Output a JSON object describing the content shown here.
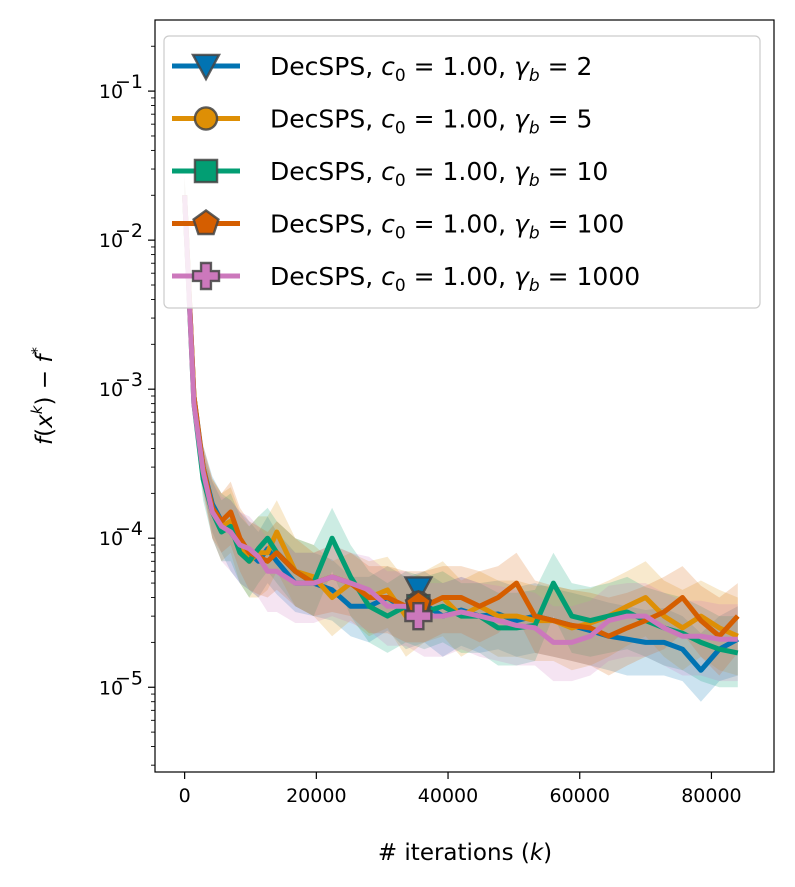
{
  "chart_data": {
    "type": "line",
    "title": "",
    "xlabel": "# iterations (k)",
    "ylabel": "f(x^k) − f*",
    "x_scale": "linear",
    "y_scale": "log",
    "xlim": [
      -4500,
      89500
    ],
    "ylim": [
      2.7e-06,
      0.3
    ],
    "grid": false,
    "legend_position": "upper-right",
    "x_ticks": [
      0,
      20000,
      40000,
      60000,
      80000
    ],
    "x_tick_labels": [
      "0",
      "20000",
      "40000",
      "60000",
      "80000"
    ],
    "y_ticks": [
      1e-05,
      0.0001,
      0.001,
      0.01,
      0.1
    ],
    "y_tick_labels": [
      {
        "base": "10",
        "exp": "−5"
      },
      {
        "base": "10",
        "exp": "−4"
      },
      {
        "base": "10",
        "exp": "−3"
      },
      {
        "base": "10",
        "exp": "−2"
      },
      {
        "base": "10",
        "exp": "−1"
      }
    ],
    "x": [
      0,
      1400,
      2800,
      4200,
      5600,
      7000,
      8400,
      9800,
      11200,
      12600,
      14000,
      16800,
      19600,
      22400,
      25200,
      28000,
      30800,
      33600,
      36400,
      39200,
      42000,
      44800,
      47600,
      50400,
      53200,
      56000,
      58800,
      61600,
      64400,
      67200,
      70000,
      72800,
      75600,
      78400,
      81200,
      84000
    ],
    "series": [
      {
        "name": "DecSPS, c0 = 1.00, γb = 2",
        "legend": {
          "main": "DecSPS, ",
          "c_sym": "c",
          "c_sub": "0",
          "c_val": " = 1.00, ",
          "g_sym": "γ",
          "g_sub": "b",
          "g_val": " = 2"
        },
        "color": "#0173b2",
        "marker": "triangle-down",
        "marker_x": 35500,
        "marker_y": 4.6e-05,
        "values": [
          0.02,
          0.0009,
          0.0003,
          0.00017,
          0.00013,
          0.00011,
          9e-05,
          8e-05,
          7e-05,
          8.5e-05,
          7e-05,
          5e-05,
          5e-05,
          4.5e-05,
          3.5e-05,
          3.5e-05,
          4e-05,
          3.3e-05,
          3.6e-05,
          3e-05,
          3.3e-05,
          3e-05,
          3.1e-05,
          2.8e-05,
          3e-05,
          2.8e-05,
          2.6e-05,
          2.4e-05,
          2.2e-05,
          2.1e-05,
          2e-05,
          2e-05,
          1.8e-05,
          1.3e-05,
          1.8e-05,
          2.1e-05
        ],
        "band_lo": [
          0.015,
          0.0007,
          0.00022,
          0.00011,
          8e-05,
          6e-05,
          5e-05,
          4.5e-05,
          4e-05,
          5e-05,
          4.2e-05,
          3.2e-05,
          3e-05,
          2.8e-05,
          2.2e-05,
          2e-05,
          2.4e-05,
          1.8e-05,
          2e-05,
          1.6e-05,
          1.9e-05,
          1.7e-05,
          1.8e-05,
          1.6e-05,
          1.7e-05,
          1.6e-05,
          1.5e-05,
          1.4e-05,
          1.3e-05,
          1.2e-05,
          1.2e-05,
          1.2e-05,
          1.1e-05,
          8e-06,
          1.1e-05,
          1.2e-05
        ],
        "band_hi": [
          0.027,
          0.0012,
          0.00042,
          0.00026,
          0.0002,
          0.00018,
          0.00015,
          0.00013,
          0.00011,
          0.00014,
          0.00011,
          8e-05,
          8e-05,
          7.2e-05,
          5.5e-05,
          5.5e-05,
          6.5e-05,
          5.5e-05,
          6e-05,
          5e-05,
          5.5e-05,
          5e-05,
          5.2e-05,
          4.7e-05,
          5e-05,
          4.6e-05,
          4.3e-05,
          4e-05,
          3.7e-05,
          3.5e-05,
          3.3e-05,
          3.4e-05,
          3e-05,
          2.3e-05,
          3e-05,
          3.5e-05
        ]
      },
      {
        "name": "DecSPS, c0 = 1.00, γb = 5",
        "legend": {
          "main": "DecSPS, ",
          "c_sym": "c",
          "c_sub": "0",
          "c_val": " = 1.00, ",
          "g_sym": "γ",
          "g_sub": "b",
          "g_val": " = 5"
        },
        "color": "#de8f05",
        "marker": "circle",
        "marker_x": 35500,
        "marker_y": 3.7e-05,
        "values": [
          0.02,
          0.0009,
          0.00028,
          0.00016,
          0.00012,
          0.00013,
          9e-05,
          7e-05,
          8e-05,
          8e-05,
          0.00011,
          6e-05,
          5.5e-05,
          4e-05,
          5e-05,
          4e-05,
          4.5e-05,
          3e-05,
          3.5e-05,
          4e-05,
          3e-05,
          3.5e-05,
          3e-05,
          3e-05,
          2.8e-05,
          2.8e-05,
          2.5e-05,
          2.7e-05,
          3e-05,
          3.5e-05,
          4e-05,
          3e-05,
          2.5e-05,
          3e-05,
          2.5e-05,
          2.2e-05
        ],
        "band_lo": [
          0.015,
          0.0007,
          0.0002,
          0.0001,
          7e-05,
          8e-05,
          5e-05,
          4e-05,
          4e-05,
          4.5e-05,
          6e-05,
          3.5e-05,
          3e-05,
          2.2e-05,
          2.8e-05,
          2.2e-05,
          2.5e-05,
          1.6e-05,
          2e-05,
          2.2e-05,
          1.6e-05,
          1.9e-05,
          1.6e-05,
          1.6e-05,
          1.5e-05,
          1.5e-05,
          1.3e-05,
          1.4e-05,
          1.6e-05,
          1.9e-05,
          2.2e-05,
          1.6e-05,
          1.3e-05,
          1.6e-05,
          1.3e-05,
          1.2e-05
        ],
        "band_hi": [
          0.027,
          0.0012,
          0.0004,
          0.00025,
          0.0002,
          0.00022,
          0.00015,
          0.00012,
          0.00014,
          0.00014,
          0.00018,
          0.0001,
          9e-05,
          7e-05,
          8e-05,
          7e-05,
          7.5e-05,
          5.2e-05,
          6e-05,
          7e-05,
          5.2e-05,
          6e-05,
          5.2e-05,
          5.2e-05,
          4.8e-05,
          4.8e-05,
          4.5e-05,
          4.6e-05,
          5.2e-05,
          6e-05,
          7e-05,
          5.2e-05,
          4.5e-05,
          5.2e-05,
          4.5e-05,
          4e-05
        ]
      },
      {
        "name": "DecSPS, c0 = 1.00, γb = 10",
        "legend": {
          "main": "DecSPS, ",
          "c_sym": "c",
          "c_sub": "0",
          "c_val": " = 1.00, ",
          "g_sym": "γ",
          "g_sub": "b",
          "g_val": " = 10"
        },
        "color": "#029e73",
        "marker": "square",
        "marker_x": 35500,
        "marker_y": 3.5e-05,
        "values": [
          0.02,
          0.0008,
          0.00025,
          0.00015,
          0.00011,
          0.00012,
          8e-05,
          7e-05,
          8.5e-05,
          0.0001,
          8e-05,
          6e-05,
          5e-05,
          0.0001,
          5.5e-05,
          3.5e-05,
          3e-05,
          3.5e-05,
          3.2e-05,
          3.5e-05,
          3e-05,
          3e-05,
          2.5e-05,
          2.5e-05,
          2.6e-05,
          5e-05,
          3e-05,
          2.8e-05,
          3e-05,
          3.2e-05,
          2.8e-05,
          2.5e-05,
          2.3e-05,
          2e-05,
          1.8e-05,
          1.7e-05
        ],
        "band_lo": [
          0.015,
          0.0006,
          0.00018,
          0.0001,
          7e-05,
          7e-05,
          5e-05,
          4e-05,
          5e-05,
          6e-05,
          5e-05,
          3.5e-05,
          3e-05,
          6e-05,
          3e-05,
          2e-05,
          1.7e-05,
          2e-05,
          1.8e-05,
          2e-05,
          1.7e-05,
          1.7e-05,
          1.4e-05,
          1.4e-05,
          1.5e-05,
          3e-05,
          1.7e-05,
          1.6e-05,
          1.7e-05,
          1.8e-05,
          1.6e-05,
          1.4e-05,
          1.3e-05,
          1.1e-05,
          1e-05,
          1e-05
        ],
        "band_hi": [
          0.027,
          0.0011,
          0.00036,
          0.00024,
          0.00018,
          0.0002,
          0.00014,
          0.00012,
          0.00014,
          0.00016,
          0.00013,
          0.0001,
          9e-05,
          0.00016,
          9e-05,
          6e-05,
          5e-05,
          6e-05,
          5.5e-05,
          6e-05,
          5e-05,
          5e-05,
          4.3e-05,
          4.3e-05,
          4.5e-05,
          8e-05,
          5e-05,
          4.7e-05,
          5e-05,
          5.5e-05,
          4.7e-05,
          4.3e-05,
          4e-05,
          3.5e-05,
          3e-05,
          3e-05
        ]
      },
      {
        "name": "DecSPS, c0 = 1.00, γb = 100",
        "legend": {
          "main": "DecSPS, ",
          "c_sym": "c",
          "c_sub": "0",
          "c_val": " = 1.00, ",
          "g_sym": "γ",
          "g_sub": "b",
          "g_val": " = 100"
        },
        "color": "#d55e00",
        "marker": "pentagon",
        "marker_x": 35500,
        "marker_y": 3.6e-05,
        "values": [
          0.02,
          0.0009,
          0.0003,
          0.00016,
          0.00013,
          0.00015,
          0.0001,
          8e-05,
          7.5e-05,
          7e-05,
          8e-05,
          6e-05,
          5e-05,
          5.5e-05,
          5e-05,
          4e-05,
          4e-05,
          3.5e-05,
          3.5e-05,
          4e-05,
          4e-05,
          3.5e-05,
          4e-05,
          5e-05,
          3e-05,
          2.8e-05,
          2.6e-05,
          2.5e-05,
          2.2e-05,
          2.5e-05,
          2.8e-05,
          3.2e-05,
          4e-05,
          2.8e-05,
          2.2e-05,
          3e-05
        ],
        "band_lo": [
          0.015,
          0.0007,
          0.00022,
          0.0001,
          8e-05,
          9e-05,
          6e-05,
          4.5e-05,
          4.2e-05,
          4e-05,
          4.5e-05,
          3.5e-05,
          3e-05,
          3.2e-05,
          3e-05,
          2.3e-05,
          2.3e-05,
          2e-05,
          2e-05,
          2.3e-05,
          2.3e-05,
          2e-05,
          2.3e-05,
          3e-05,
          1.7e-05,
          1.6e-05,
          1.5e-05,
          1.4e-05,
          1.2e-05,
          1.4e-05,
          1.6e-05,
          1.8e-05,
          2.3e-05,
          1.6e-05,
          1.2e-05,
          1.7e-05
        ],
        "band_hi": [
          0.027,
          0.0012,
          0.00042,
          0.00025,
          0.0002,
          0.00024,
          0.00016,
          0.00013,
          0.00012,
          0.00011,
          0.00013,
          0.0001,
          8e-05,
          9e-05,
          8e-05,
          6.5e-05,
          6.5e-05,
          6e-05,
          6e-05,
          6.5e-05,
          6.5e-05,
          6e-05,
          6.5e-05,
          8e-05,
          5.2e-05,
          4.8e-05,
          4.5e-05,
          4.3e-05,
          4e-05,
          4.3e-05,
          4.8e-05,
          5.5e-05,
          6.5e-05,
          4.8e-05,
          4e-05,
          5e-05
        ]
      },
      {
        "name": "DecSPS, c0 = 1.00, γb = 1000",
        "legend": {
          "main": "DecSPS, ",
          "c_sym": "c",
          "c_sub": "0",
          "c_val": " = 1.00, ",
          "g_sym": "γ",
          "g_sub": "b",
          "g_val": " = 1000"
        },
        "color": "#cc78bc",
        "marker": "plus",
        "marker_x": 35500,
        "marker_y": 3e-05,
        "values": [
          0.02,
          0.0008,
          0.00028,
          0.00015,
          0.00012,
          0.00011,
          9e-05,
          8.5e-05,
          7.5e-05,
          6e-05,
          6e-05,
          5e-05,
          5e-05,
          5.5e-05,
          5e-05,
          4.5e-05,
          3.5e-05,
          3.5e-05,
          3e-05,
          3e-05,
          3.2e-05,
          3e-05,
          2.8e-05,
          2.6e-05,
          2.5e-05,
          2e-05,
          2e-05,
          2.2e-05,
          2.8e-05,
          3e-05,
          3e-05,
          2.5e-05,
          2.2e-05,
          2.2e-05,
          2.1e-05,
          2.1e-05
        ],
        "band_lo": [
          0.015,
          0.0006,
          0.0002,
          0.0001,
          7e-05,
          6e-05,
          5e-05,
          4.5e-05,
          4e-05,
          3.2e-05,
          3.2e-05,
          2.7e-05,
          2.7e-05,
          3e-05,
          2.7e-05,
          2.4e-05,
          1.9e-05,
          1.9e-05,
          1.6e-05,
          1.6e-05,
          1.8e-05,
          1.6e-05,
          1.5e-05,
          1.4e-05,
          1.4e-05,
          1.1e-05,
          1.1e-05,
          1.2e-05,
          1.5e-05,
          1.6e-05,
          1.6e-05,
          1.4e-05,
          1.2e-05,
          1.2e-05,
          1.1e-05,
          1.1e-05
        ],
        "band_hi": [
          0.027,
          0.0011,
          0.0004,
          0.00024,
          0.00019,
          0.00018,
          0.00015,
          0.00014,
          0.00012,
          0.0001,
          0.0001,
          8e-05,
          8e-05,
          9e-05,
          8e-05,
          7.5e-05,
          6e-05,
          6e-05,
          5e-05,
          5e-05,
          5.5e-05,
          5e-05,
          4.8e-05,
          4.5e-05,
          4.3e-05,
          3.5e-05,
          3.5e-05,
          3.8e-05,
          4.8e-05,
          5e-05,
          5e-05,
          4.3e-05,
          3.8e-05,
          3.8e-05,
          3.6e-05,
          3.6e-05
        ]
      }
    ]
  }
}
